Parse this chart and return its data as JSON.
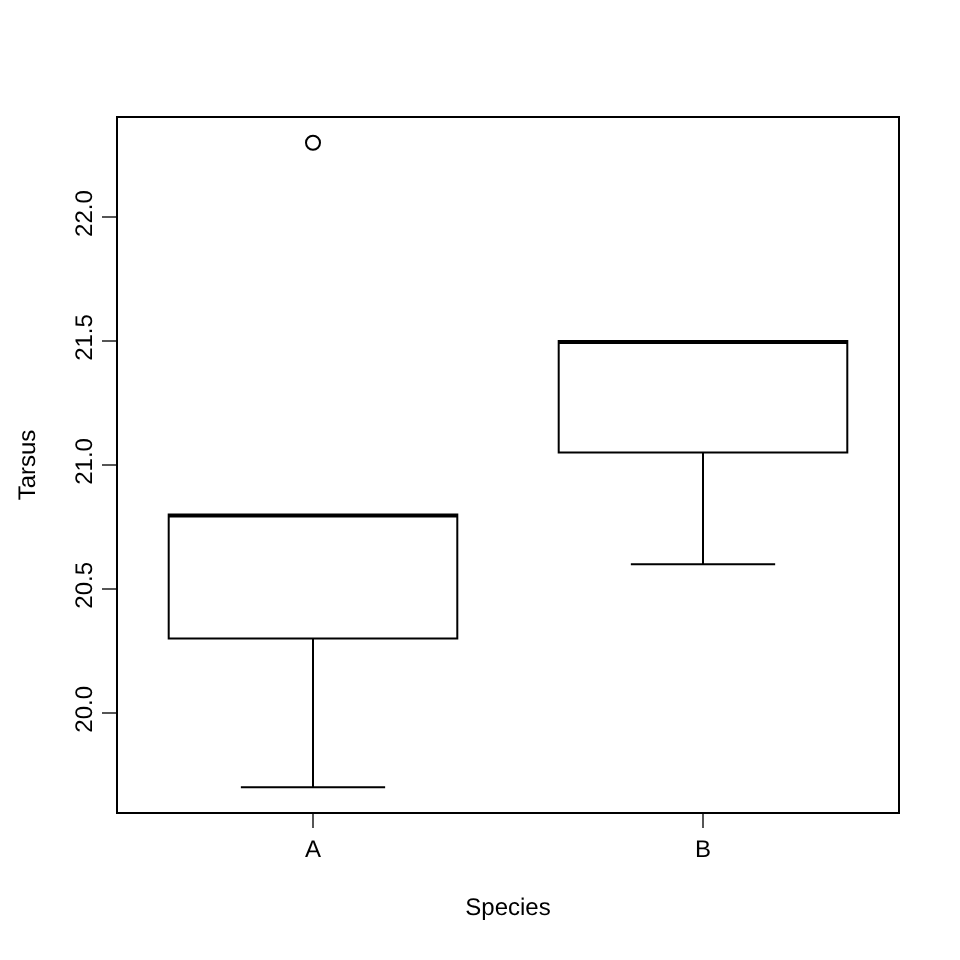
{
  "chart_data": {
    "type": "box",
    "xlabel": "Species",
    "ylabel": "Tarsus",
    "categories": [
      "A",
      "B"
    ],
    "boxes": [
      {
        "low": 19.7,
        "q1": 20.3,
        "median": 20.8,
        "q3": 20.8,
        "high": 20.8,
        "outliers": [
          22.3
        ]
      },
      {
        "low": 20.6,
        "q1": 21.05,
        "median": 21.5,
        "q3": 21.5,
        "high": 21.5
      }
    ],
    "color": "#000000",
    "ylim": [
      19.6,
      22.4
    ],
    "yticks": [
      {
        "value": 20,
        "label": "20.0"
      },
      {
        "value": 20.5,
        "label": "20.5"
      },
      {
        "value": 21,
        "label": "21.0"
      },
      {
        "value": 21.5,
        "label": "21.5"
      },
      {
        "value": 22,
        "label": "22.0"
      }
    ]
  }
}
